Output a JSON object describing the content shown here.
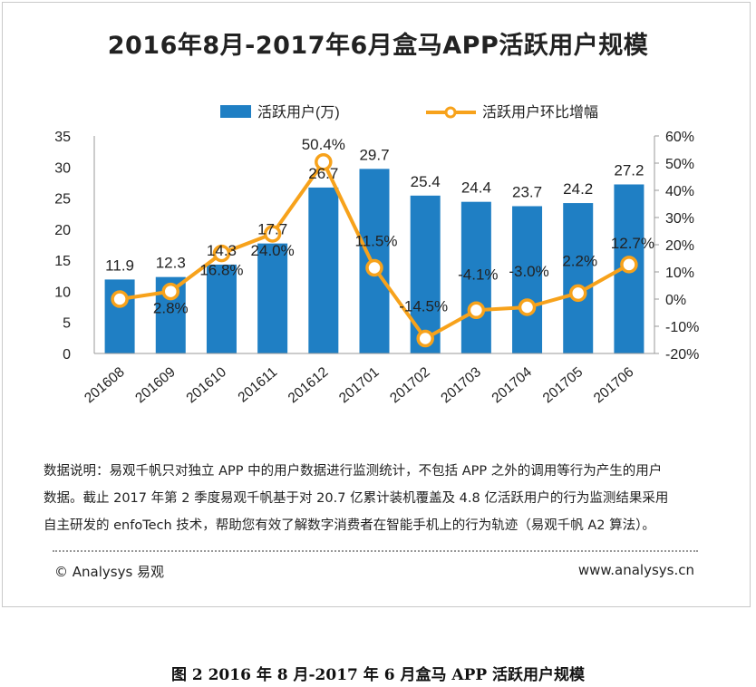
{
  "chart_data": {
    "type": "bar+line",
    "title": "2016年8月-2017年6月盒马APP活跃用户规模",
    "categories": [
      "201608",
      "201609",
      "201610",
      "201611",
      "201612",
      "201701",
      "201702",
      "201703",
      "201704",
      "201705",
      "201706"
    ],
    "series": [
      {
        "name": "活跃用户(万)",
        "type": "bar",
        "axis": "left",
        "color": "#1f7fc4",
        "values": [
          11.9,
          12.3,
          14.3,
          17.7,
          26.7,
          29.7,
          25.4,
          24.4,
          23.7,
          24.2,
          27.2
        ],
        "labels": [
          "11.9",
          "12.3",
          "14.3",
          "17.7",
          "26.7",
          "29.7",
          "25.4",
          "24.4",
          "23.7",
          "24.2",
          "27.2"
        ]
      },
      {
        "name": "活跃用户环比增幅",
        "type": "line",
        "axis": "right",
        "color": "#f7a21b",
        "values": [
          0.0,
          2.8,
          16.8,
          24.0,
          50.4,
          11.5,
          -14.5,
          -4.1,
          -3.0,
          2.2,
          12.7
        ],
        "labels": [
          "",
          "2.8%",
          "16.8%",
          "24.0%",
          "50.4%",
          "11.5%",
          "-14.5%",
          "-4.1%",
          "-3.0%",
          "2.2%",
          "12.7%"
        ]
      }
    ],
    "y_left": {
      "range": [
        0,
        35
      ],
      "ticks": [
        "0",
        "5",
        "10",
        "15",
        "20",
        "25",
        "30",
        "35"
      ]
    },
    "y_right": {
      "range": [
        -20,
        60
      ],
      "ticks": [
        "-20%",
        "-10%",
        "0%",
        "10%",
        "20%",
        "30%",
        "40%",
        "50%",
        "60%"
      ]
    },
    "legend_position": "top-center",
    "grid": false
  },
  "note": {
    "lines": [
      "数据说明：易观千帆只对独立 APP 中的用户数据进行监测统计，不包括 APP 之外的调用等行为产生的用户",
      "数据。截止 2017 年第 2 季度易观千帆基于对 20.7 亿累计装机覆盖及 4.8 亿活跃用户的行为监测结果采用",
      "自主研发的 enfoTech 技术，帮助您有效了解数字消费者在智能手机上的行为轨迹（易观千帆 A2 算法）。"
    ]
  },
  "footer": {
    "copyright": "© Analysys 易观",
    "website": "www.analysys.cn"
  },
  "caption": "图 2  2016 年 8 月-2017 年 6 月盒马 APP 活跃用户规模"
}
